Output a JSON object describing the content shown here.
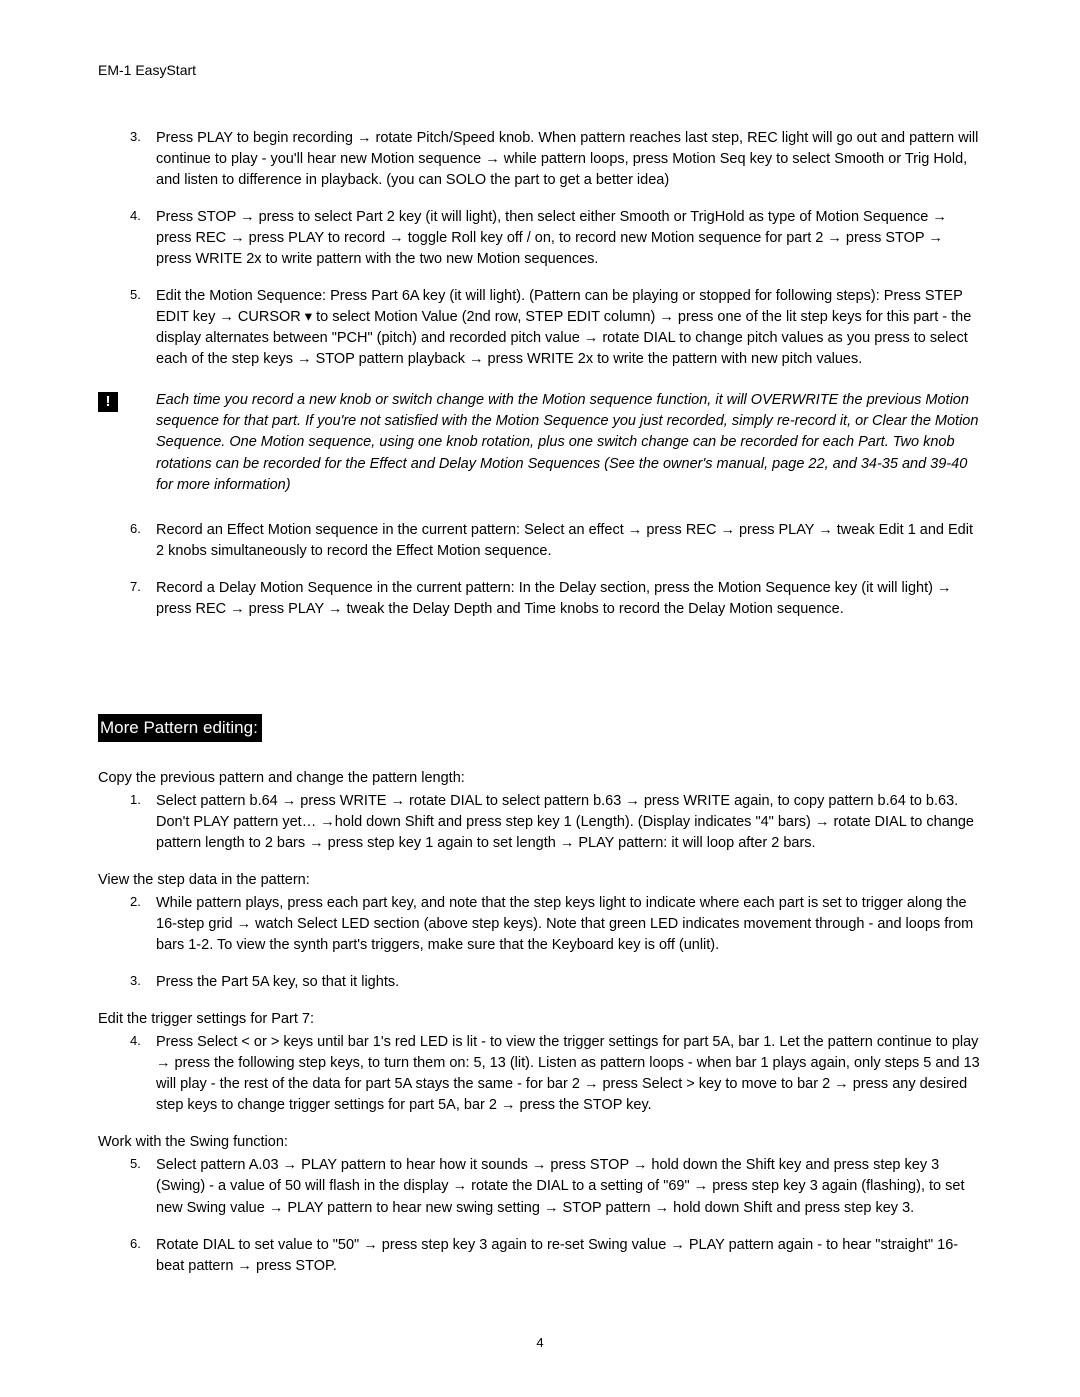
{
  "header": "EM-1 EasyStart",
  "arrow": "→",
  "downArrow": "▾",
  "list1": {
    "i3": {
      "num": "3.",
      "text": "Press PLAY to begin recording → rotate Pitch/Speed knob. When pattern reaches last step, REC light will go out and pattern will continue to play - you'll hear new Motion sequence → while pattern loops, press Motion Seq key to select Smooth or Trig Hold, and listen to difference in playback. (you can SOLO the part to get a better idea)"
    },
    "i4": {
      "num": "4.",
      "text": "Press STOP → press to select Part 2 key (it will light), then select either Smooth or TrigHold as type of Motion Sequence → press REC → press PLAY to record → toggle Roll key off / on, to record new Motion sequence for part 2 → press STOP → press WRITE 2x to write pattern with the two new Motion sequences."
    },
    "i5": {
      "num": "5.",
      "text": "Edit the Motion Sequence: Press Part 6A key (it will light). (Pattern can be playing or stopped for following steps): Press STEP EDIT key → CURSOR ▾ to select Motion Value (2nd row, STEP EDIT column) → press one of the lit step keys for this part - the display alternates between \"PCH\" (pitch) and recorded pitch value → rotate DIAL to change pitch values as you press to select each of the step keys → STOP pattern playback → press WRITE 2x to write the pattern with new pitch values."
    },
    "i6": {
      "num": "6.",
      "text": "Record an Effect Motion sequence in the current pattern: Select an effect → press REC → press PLAY → tweak Edit 1 and Edit 2 knobs simultaneously to record the Effect Motion sequence."
    },
    "i7": {
      "num": "7.",
      "text": "Record a Delay Motion Sequence in the current pattern: In the Delay section, press the Motion Sequence key (it will light) → press REC → press PLAY → tweak the Delay Depth and Time knobs to record the Delay Motion sequence."
    }
  },
  "note": {
    "icon": "!",
    "text": "Each time you record a new knob or switch change with the Motion sequence function, it will OVERWRITE the previous Motion sequence for that part. If you're not satisfied with the Motion Sequence you just recorded, simply re-record it, or Clear the Motion Sequence. One Motion sequence, using one knob rotation, plus one switch change can be recorded for each Part. Two knob rotations can be recorded for the Effect and Delay Motion Sequences (See the owner's manual, page 22, and 34-35 and 39-40 for more information)"
  },
  "section2": {
    "heading": " More Pattern editing:",
    "sub1": {
      "intro": "Copy the previous pattern and change the pattern length:",
      "i1": {
        "num": "1.",
        "text": "Select pattern b.64 → press WRITE → rotate DIAL to select pattern b.63 → press WRITE again, to copy pattern b.64 to b.63. Don't PLAY pattern yet… →hold down Shift and press step key 1 (Length). (Display indicates \"4\" bars) → rotate DIAL to change pattern length to 2 bars → press step key 1 again to set length → PLAY pattern: it will loop after 2 bars."
      }
    },
    "sub2": {
      "intro": "View the step data in the pattern:",
      "i2": {
        "num": "2.",
        "text": "While pattern plays, press each part key, and note that the step keys light to indicate where each part is set to trigger along the 16-step grid → watch Select LED section (above step keys). Note that green LED indicates movement through - and loops from bars 1-2. To view the synth part's triggers, make sure that the Keyboard key is off (unlit)."
      },
      "i3": {
        "num": "3.",
        "text": "Press the Part 5A key, so that it lights."
      }
    },
    "sub3": {
      "intro": "Edit the trigger settings for Part 7:",
      "i4": {
        "num": "4.",
        "text": "Press Select < or > keys until bar 1's red LED is lit - to view the trigger settings for part 5A, bar 1. Let the pattern continue to play → press the following step keys, to turn them on: 5, 13 (lit). Listen as pattern loops - when bar 1 plays again, only steps 5 and 13 will play - the rest of the data for part 5A stays the same - for bar 2 → press Select > key to move to bar 2 → press any desired step keys to change trigger settings for part 5A, bar 2 → press the STOP key."
      }
    },
    "sub4": {
      "intro": "Work with the Swing function:",
      "i5": {
        "num": "5.",
        "text": "Select pattern A.03 → PLAY pattern to hear how it sounds → press STOP → hold down the Shift key and press step key 3 (Swing) - a value of 50 will flash in the display → rotate the DIAL to a setting of \"69\" → press step key 3 again (flashing), to set new Swing value → PLAY pattern to hear new swing setting → STOP pattern → hold down Shift and press step key 3."
      },
      "i6": {
        "num": "6.",
        "text": "Rotate DIAL to set value to \"50\" → press step key 3 again to re-set Swing value → PLAY pattern again - to hear \"straight\" 16-beat pattern → press STOP."
      }
    }
  },
  "pageNumber": "4"
}
